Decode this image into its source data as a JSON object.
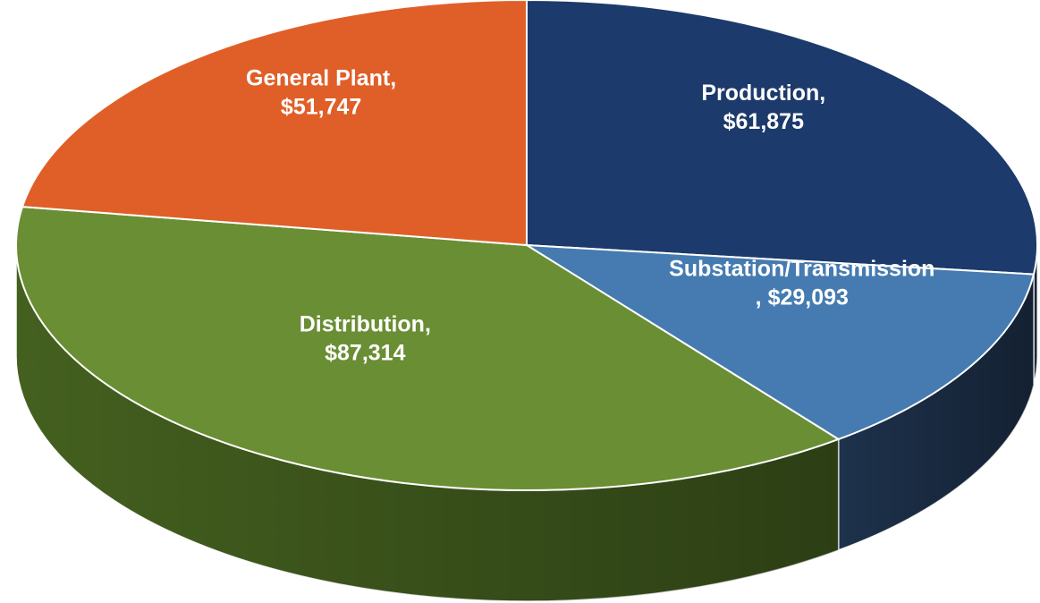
{
  "chart_data": {
    "type": "pie3d",
    "categories": [
      "Production,",
      "Substation/Transmission",
      "Distribution,",
      "General Plant,"
    ],
    "values": [
      61875,
      29093,
      87314,
      51747
    ],
    "value_labels": [
      "$61,875",
      ",  $29,093",
      "$87,314",
      "$51,747"
    ],
    "colors": [
      "#1c3a6b",
      "#457bb0",
      "#6a8e34",
      "#e05f28"
    ],
    "side_colors": [
      "#1c2f4a",
      "#1e324c",
      "#44601f",
      "#a8471d"
    ]
  }
}
